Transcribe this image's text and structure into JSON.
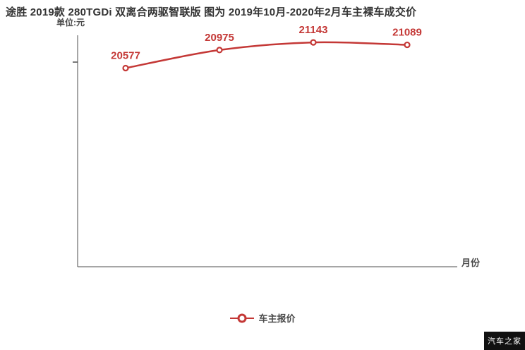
{
  "page": {
    "watermark": "汽车之家"
  },
  "chart_data": {
    "type": "line",
    "title": "途胜 2019款 280TGDi 双离合两驱智联版 图为 2019年10月-2020年2月车主裸车成交价",
    "unit_label": "单位:元",
    "xlabel": "月份",
    "ylabel": "",
    "series": [
      {
        "name": "车主报价",
        "color": "#c43836",
        "values": [
          20577,
          20975,
          21143,
          21089
        ]
      }
    ],
    "point_labels": [
      "20577",
      "20975",
      "21143",
      "21089"
    ],
    "x_tick_labels_visible": false,
    "ylim": [
      16200,
      21300
    ],
    "grid": false,
    "legend_position": "bottom-center"
  },
  "colors": {
    "accent_red": "#c43836",
    "axis": "#4d4d4d",
    "title_text": "#333333",
    "watermark_bg": "#111111",
    "watermark_text": "#ffffff"
  }
}
